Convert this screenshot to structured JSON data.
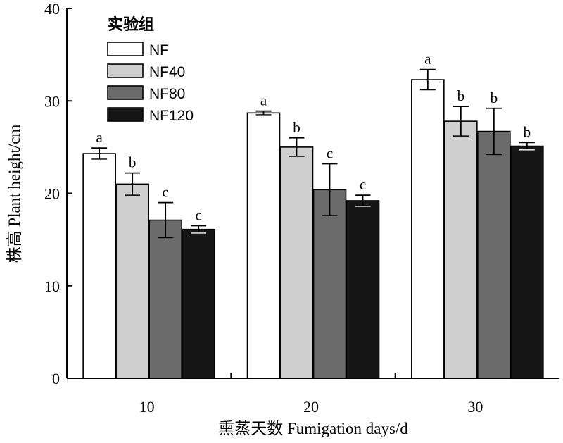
{
  "chart_data": {
    "type": "bar",
    "xlabel": "熏蒸天数 Fumigation days/d",
    "ylabel": "株高 Plant height/cm",
    "ylim": [
      0,
      40
    ],
    "yticks": [
      "0",
      "10",
      "20",
      "30",
      "40"
    ],
    "categories": [
      "10",
      "20",
      "30"
    ],
    "legend": {
      "title": "实验组",
      "placement": "top-left"
    },
    "series": [
      {
        "name": "NF",
        "color": "#ffffff",
        "values": [
          24.3,
          28.7,
          32.3
        ],
        "errors": [
          0.6,
          0.2,
          1.1
        ],
        "labels": [
          "a",
          "a",
          "a"
        ]
      },
      {
        "name": "NF40",
        "color": "#cfcfcf",
        "values": [
          21.0,
          25.0,
          27.8
        ],
        "errors": [
          1.2,
          1.0,
          1.6
        ],
        "labels": [
          "b",
          "b",
          "b"
        ]
      },
      {
        "name": "NF80",
        "color": "#6b6b6b",
        "values": [
          17.1,
          20.4,
          26.7
        ],
        "errors": [
          1.9,
          2.8,
          2.5
        ],
        "labels": [
          "c",
          "c",
          "b"
        ]
      },
      {
        "name": "NF120",
        "color": "#161616",
        "values": [
          16.1,
          19.2,
          25.1
        ],
        "errors": [
          0.4,
          0.6,
          0.4
        ],
        "labels": [
          "c",
          "c",
          "b"
        ]
      }
    ]
  }
}
